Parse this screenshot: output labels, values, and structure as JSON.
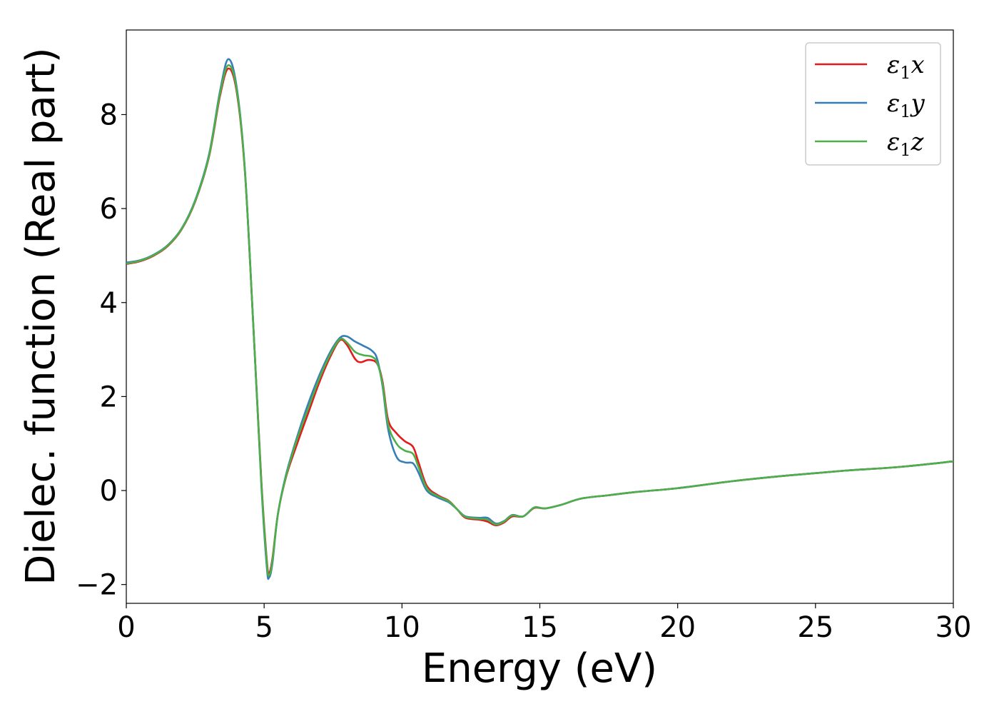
{
  "chart_data": {
    "type": "line",
    "title": "",
    "xlabel": "Energy (eV)",
    "ylabel": "Dielec. function (Real part)",
    "xlim": [
      0,
      30
    ],
    "ylim": [
      -2.4,
      9.8
    ],
    "x_ticks": [
      0,
      5,
      10,
      15,
      20,
      25,
      30
    ],
    "x_tick_labels": [
      "0",
      "5",
      "10",
      "15",
      "20",
      "25",
      "30"
    ],
    "y_ticks": [
      -2,
      0,
      2,
      4,
      6,
      8
    ],
    "y_tick_labels": [
      "−2",
      "0",
      "2",
      "4",
      "6",
      "8"
    ],
    "grid": false,
    "legend_position": "top-right",
    "series": [
      {
        "name": "ε1x",
        "name_base": "ε",
        "name_sub": "1",
        "name_suffix": "x",
        "color": "#e41a1c",
        "points": [
          [
            0,
            4.82
          ],
          [
            0.5,
            4.88
          ],
          [
            1,
            5.0
          ],
          [
            1.5,
            5.2
          ],
          [
            2,
            5.55
          ],
          [
            2.5,
            6.15
          ],
          [
            3,
            7.1
          ],
          [
            3.4,
            8.4
          ],
          [
            3.7,
            8.98
          ],
          [
            4.0,
            8.5
          ],
          [
            4.3,
            6.8
          ],
          [
            4.6,
            3.6
          ],
          [
            4.9,
            0.2
          ],
          [
            5.1,
            -1.5
          ],
          [
            5.18,
            -1.75
          ],
          [
            5.3,
            -1.45
          ],
          [
            5.5,
            -0.5
          ],
          [
            5.8,
            0.3
          ],
          [
            6.2,
            1.0
          ],
          [
            6.6,
            1.65
          ],
          [
            7.0,
            2.3
          ],
          [
            7.4,
            2.85
          ],
          [
            7.75,
            3.2
          ],
          [
            8.0,
            3.1
          ],
          [
            8.3,
            2.8
          ],
          [
            8.5,
            2.73
          ],
          [
            8.8,
            2.78
          ],
          [
            9.1,
            2.7
          ],
          [
            9.3,
            2.3
          ],
          [
            9.5,
            1.5
          ],
          [
            9.8,
            1.22
          ],
          [
            10.1,
            1.05
          ],
          [
            10.4,
            0.93
          ],
          [
            10.6,
            0.6
          ],
          [
            10.9,
            0.1
          ],
          [
            11.3,
            -0.1
          ],
          [
            11.7,
            -0.22
          ],
          [
            12.0,
            -0.4
          ],
          [
            12.3,
            -0.58
          ],
          [
            12.8,
            -0.62
          ],
          [
            13.1,
            -0.66
          ],
          [
            13.4,
            -0.74
          ],
          [
            13.7,
            -0.68
          ],
          [
            14.0,
            -0.55
          ],
          [
            14.4,
            -0.55
          ],
          [
            14.8,
            -0.37
          ],
          [
            15.2,
            -0.38
          ],
          [
            15.8,
            -0.3
          ],
          [
            16.5,
            -0.17
          ],
          [
            17.5,
            -0.1
          ],
          [
            18.5,
            -0.03
          ],
          [
            20,
            0.05
          ],
          [
            22,
            0.2
          ],
          [
            24,
            0.32
          ],
          [
            26,
            0.42
          ],
          [
            28,
            0.5
          ],
          [
            30,
            0.62
          ]
        ]
      },
      {
        "name": "ε1y",
        "name_base": "ε",
        "name_sub": "1",
        "name_suffix": "y",
        "color": "#377eb8",
        "points": [
          [
            0,
            4.85
          ],
          [
            0.5,
            4.9
          ],
          [
            1,
            5.02
          ],
          [
            1.5,
            5.22
          ],
          [
            2,
            5.57
          ],
          [
            2.5,
            6.18
          ],
          [
            3,
            7.15
          ],
          [
            3.4,
            8.5
          ],
          [
            3.7,
            9.18
          ],
          [
            4.0,
            8.6
          ],
          [
            4.3,
            6.85
          ],
          [
            4.6,
            3.6
          ],
          [
            4.9,
            0.1
          ],
          [
            5.1,
            -1.65
          ],
          [
            5.18,
            -1.85
          ],
          [
            5.3,
            -1.55
          ],
          [
            5.5,
            -0.5
          ],
          [
            5.8,
            0.35
          ],
          [
            6.2,
            1.15
          ],
          [
            6.6,
            1.85
          ],
          [
            7.0,
            2.45
          ],
          [
            7.4,
            2.95
          ],
          [
            7.75,
            3.25
          ],
          [
            8.0,
            3.28
          ],
          [
            8.3,
            3.17
          ],
          [
            8.6,
            3.08
          ],
          [
            8.9,
            2.98
          ],
          [
            9.1,
            2.8
          ],
          [
            9.3,
            2.2
          ],
          [
            9.5,
            1.3
          ],
          [
            9.8,
            0.72
          ],
          [
            10.1,
            0.6
          ],
          [
            10.4,
            0.58
          ],
          [
            10.6,
            0.38
          ],
          [
            10.9,
            0.0
          ],
          [
            11.3,
            -0.15
          ],
          [
            11.7,
            -0.25
          ],
          [
            12.0,
            -0.4
          ],
          [
            12.3,
            -0.55
          ],
          [
            12.8,
            -0.58
          ],
          [
            13.1,
            -0.58
          ],
          [
            13.4,
            -0.7
          ],
          [
            13.7,
            -0.65
          ],
          [
            14.0,
            -0.52
          ],
          [
            14.4,
            -0.55
          ],
          [
            14.8,
            -0.36
          ],
          [
            15.2,
            -0.38
          ],
          [
            15.8,
            -0.3
          ],
          [
            16.5,
            -0.17
          ],
          [
            17.5,
            -0.1
          ],
          [
            18.5,
            -0.03
          ],
          [
            20,
            0.05
          ],
          [
            22,
            0.2
          ],
          [
            24,
            0.32
          ],
          [
            26,
            0.42
          ],
          [
            28,
            0.5
          ],
          [
            30,
            0.62
          ]
        ]
      },
      {
        "name": "ε1z",
        "name_base": "ε",
        "name_sub": "1",
        "name_suffix": "z",
        "color": "#4daf4a",
        "points": [
          [
            0,
            4.83
          ],
          [
            0.5,
            4.89
          ],
          [
            1,
            5.01
          ],
          [
            1.5,
            5.21
          ],
          [
            2,
            5.56
          ],
          [
            2.5,
            6.16
          ],
          [
            3,
            7.12
          ],
          [
            3.4,
            8.45
          ],
          [
            3.7,
            9.05
          ],
          [
            4.0,
            8.55
          ],
          [
            4.3,
            6.82
          ],
          [
            4.6,
            3.6
          ],
          [
            4.9,
            0.15
          ],
          [
            5.1,
            -1.55
          ],
          [
            5.18,
            -1.8
          ],
          [
            5.3,
            -1.5
          ],
          [
            5.5,
            -0.5
          ],
          [
            5.8,
            0.32
          ],
          [
            6.2,
            1.1
          ],
          [
            6.6,
            1.75
          ],
          [
            7.0,
            2.38
          ],
          [
            7.4,
            2.9
          ],
          [
            7.75,
            3.22
          ],
          [
            8.0,
            3.15
          ],
          [
            8.3,
            2.95
          ],
          [
            8.6,
            2.88
          ],
          [
            8.9,
            2.85
          ],
          [
            9.1,
            2.72
          ],
          [
            9.3,
            2.25
          ],
          [
            9.5,
            1.4
          ],
          [
            9.8,
            1.0
          ],
          [
            10.1,
            0.85
          ],
          [
            10.4,
            0.78
          ],
          [
            10.6,
            0.5
          ],
          [
            10.9,
            0.05
          ],
          [
            11.3,
            -0.12
          ],
          [
            11.7,
            -0.23
          ],
          [
            12.0,
            -0.4
          ],
          [
            12.3,
            -0.56
          ],
          [
            12.8,
            -0.6
          ],
          [
            13.1,
            -0.62
          ],
          [
            13.4,
            -0.72
          ],
          [
            13.7,
            -0.66
          ],
          [
            14.0,
            -0.53
          ],
          [
            14.4,
            -0.55
          ],
          [
            14.8,
            -0.36
          ],
          [
            15.2,
            -0.38
          ],
          [
            15.8,
            -0.3
          ],
          [
            16.5,
            -0.17
          ],
          [
            17.5,
            -0.1
          ],
          [
            18.5,
            -0.03
          ],
          [
            20,
            0.05
          ],
          [
            22,
            0.2
          ],
          [
            24,
            0.32
          ],
          [
            26,
            0.42
          ],
          [
            28,
            0.5
          ],
          [
            30,
            0.62
          ]
        ]
      }
    ]
  }
}
